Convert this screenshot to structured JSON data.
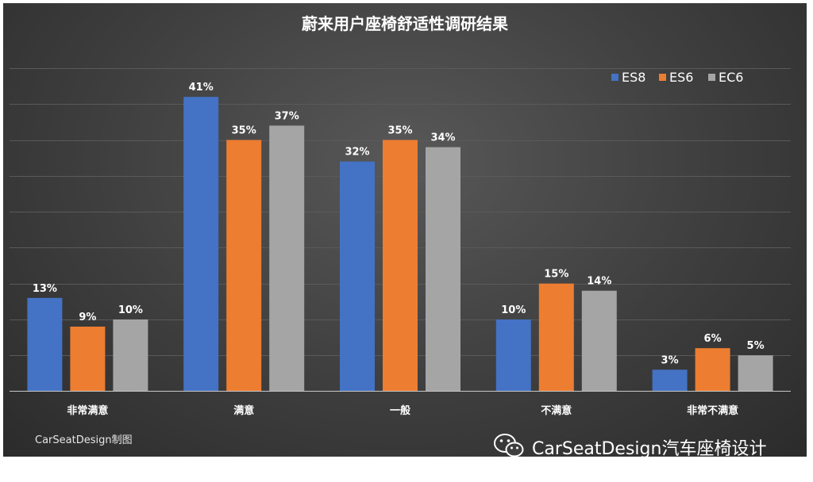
{
  "colors": {
    "ES8": "#4472c4",
    "ES6": "#ed7d31",
    "EC6": "#a5a5a5",
    "gridline": "#5a5a5a",
    "axis": "#c8c8c8"
  },
  "chart_data": {
    "type": "bar",
    "title": "蔚来用户座椅舒适性调研结果",
    "categories": [
      "非常满意",
      "满意",
      "一般",
      "不满意",
      "非常不满意"
    ],
    "series": [
      {
        "name": "ES8",
        "values": [
          13,
          41,
          32,
          10,
          3
        ],
        "labels": [
          "13%",
          "41%",
          "32%",
          "10%",
          "3%"
        ]
      },
      {
        "name": "ES6",
        "values": [
          9,
          35,
          35,
          15,
          6
        ],
        "labels": [
          "9%",
          "35%",
          "35%",
          "15%",
          "6%"
        ]
      },
      {
        "name": "EC6",
        "values": [
          10,
          37,
          34,
          14,
          5
        ],
        "labels": [
          "10%",
          "37%",
          "34%",
          "14%",
          "5%"
        ]
      }
    ],
    "ylim": [
      0,
      45
    ],
    "grid": true,
    "legend": "top-right"
  },
  "footer": {
    "credit": "CarSeatDesign制图"
  },
  "watermark": {
    "text": "CarSeatDesign汽车座椅设计",
    "icon": "wechat-icon"
  }
}
